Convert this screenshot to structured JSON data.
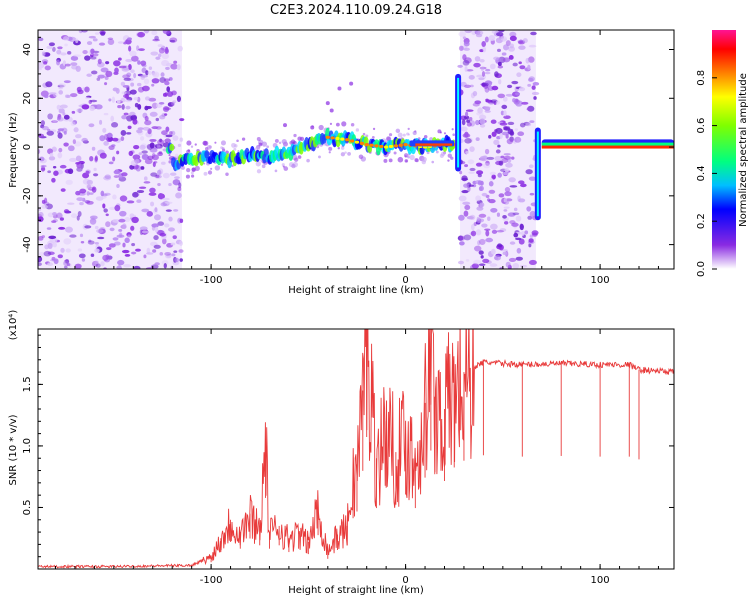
{
  "title": "C2E3.2024.110.09.24.G18",
  "chart_data": [
    {
      "type": "heatmap",
      "xlabel": "Height of straight line (km)",
      "ylabel": "Frequency (Hz)",
      "xlim": [
        -189,
        138
      ],
      "ylim": [
        -50,
        48
      ],
      "xticks": [
        -100,
        0,
        100
      ],
      "yticks": [
        -40,
        -20,
        0,
        20,
        40
      ],
      "colorbar": {
        "label": "Normalized spectral amplitude",
        "range": [
          0,
          1
        ],
        "ticks": [
          "0.0",
          "0.2",
          "0.4",
          "0.6",
          "0.8"
        ]
      },
      "noise_regions": [
        {
          "x": [
            -189,
            -115
          ],
          "y": [
            -50,
            48
          ]
        },
        {
          "x": [
            28,
            67
          ],
          "y": [
            -50,
            48
          ]
        }
      ],
      "ridge": {
        "x": [
          -120,
          -110,
          -100,
          -90,
          -80,
          -70,
          -60,
          -50,
          -40,
          -30,
          -20,
          -10,
          0,
          10,
          20,
          25,
          70,
          80,
          100,
          120,
          138
        ],
        "y": [
          -7,
          -5,
          -4,
          -5,
          -3,
          -4,
          -2,
          1,
          4,
          3,
          1,
          0,
          1,
          0,
          1,
          1,
          0,
          0,
          0,
          0,
          0
        ]
      },
      "spikes": [
        {
          "x": 27,
          "y_range": [
            -10,
            30
          ]
        },
        {
          "x": 68,
          "y_range": [
            -30,
            8
          ]
        }
      ]
    },
    {
      "type": "line",
      "xlabel": "Height of straight line (km)",
      "ylabel": "SNR (10 * v/v)",
      "scale_label": "(x10⁴)",
      "xlim": [
        -189,
        138
      ],
      "ylim": [
        0,
        19500
      ],
      "xticks": [
        -100,
        0,
        100
      ],
      "yticks": [
        5000,
        10000,
        15000
      ],
      "ytick_labels": [
        "0.5",
        "1.0",
        "1.5"
      ],
      "series": [
        {
          "color": "#e83a3a",
          "x": [
            -189,
            -150,
            -110,
            -100,
            -95,
            -90,
            -85,
            -80,
            -75,
            -72,
            -70,
            -65,
            -60,
            -55,
            -50,
            -45,
            -40,
            -35,
            -30,
            -27,
            -25,
            -22,
            -20,
            -15,
            -10,
            -5,
            0,
            5,
            10,
            13,
            15,
            20,
            25,
            30,
            40,
            60,
            80,
            100,
            115,
            120,
            138
          ],
          "y": [
            200,
            200,
            300,
            1000,
            2500,
            4000,
            3000,
            4500,
            3500,
            10500,
            3000,
            3500,
            2500,
            3000,
            2200,
            5000,
            1500,
            2800,
            3500,
            7500,
            8500,
            14500,
            19500,
            9000,
            12000,
            9500,
            11000,
            9000,
            13500,
            17500,
            14000,
            13000,
            15000,
            16000,
            16800,
            16600,
            16700,
            16600,
            16600,
            16200,
            16000
          ]
        }
      ]
    }
  ]
}
